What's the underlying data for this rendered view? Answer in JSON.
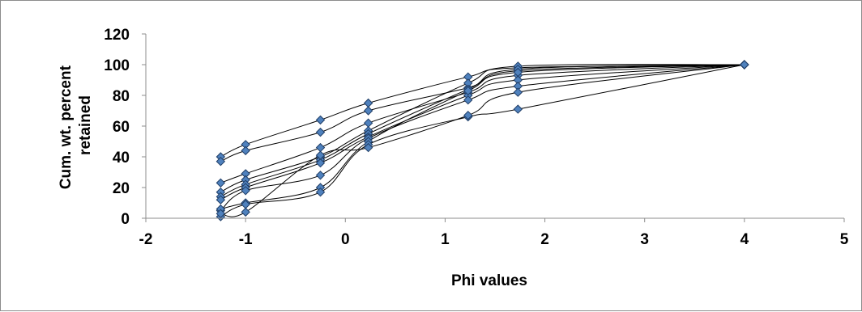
{
  "chart_data": {
    "type": "scatter",
    "title": "",
    "xlabel": "Phi values",
    "ylabel": "Cum. wt. percent retained",
    "ylabel_lines": [
      "Cum. wt. percent",
      "retained"
    ],
    "xlim": [
      -2,
      5
    ],
    "ylim": [
      0,
      120
    ],
    "xticks": [
      -2,
      -1,
      0,
      1,
      2,
      3,
      4,
      5
    ],
    "yticks": [
      0,
      20,
      40,
      60,
      80,
      100,
      120
    ],
    "grid": false,
    "legend": "none",
    "smooth_lines": true,
    "marker": "diamond",
    "marker_color": "#4f81bd",
    "line_color": "#000000",
    "x": [
      -1.25,
      -1,
      -0.25,
      0.23,
      1.23,
      1.73,
      4
    ],
    "series": [
      {
        "values": [
          40,
          48,
          64,
          75,
          92,
          98,
          100
        ]
      },
      {
        "values": [
          37,
          44,
          56,
          70,
          85,
          96,
          100
        ]
      },
      {
        "values": [
          23,
          29,
          46,
          62,
          82,
          93,
          100
        ]
      },
      {
        "values": [
          17,
          25,
          40,
          57,
          88,
          99,
          100
        ]
      },
      {
        "values": [
          14,
          22,
          38,
          55,
          84,
          97,
          100
        ]
      },
      {
        "values": [
          12,
          20,
          36,
          53,
          80,
          90,
          100
        ]
      },
      {
        "values": [
          5,
          18,
          28,
          52,
          77,
          86,
          100
        ]
      },
      {
        "values": [
          6,
          10,
          20,
          50,
          83,
          95,
          100
        ]
      },
      {
        "values": [
          1,
          9,
          17,
          48,
          66,
          71,
          100
        ]
      },
      {
        "values": [
          3,
          4,
          41,
          46,
          67,
          82,
          100
        ]
      }
    ]
  }
}
